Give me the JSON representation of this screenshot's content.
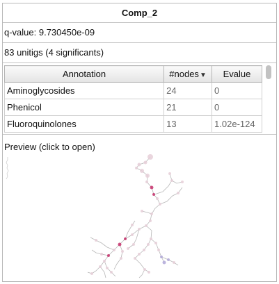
{
  "component": {
    "title": "Comp_2",
    "qvalue_text": "q-value: 9.730450e-09",
    "unitigs_text": "83 unitigs (4 significants)"
  },
  "table": {
    "headers": {
      "annotation": "Annotation",
      "nodes": "#nodes",
      "evalue": "Evalue"
    },
    "sort_indicator": "▼",
    "rows": [
      {
        "annotation": "Aminoglycosides",
        "nodes": "24",
        "evalue": "0"
      },
      {
        "annotation": "Phenicol",
        "nodes": "21",
        "evalue": "0"
      },
      {
        "annotation": "Fluoroquinolones",
        "nodes": "13",
        "evalue": "1.02e-124"
      }
    ]
  },
  "preview": {
    "label": "Preview (click to open)",
    "colors": {
      "edge": "#b7b7b7",
      "node": "#e6cfd8",
      "significant": "#c2185b",
      "highlight": "#b0a8d8"
    }
  }
}
